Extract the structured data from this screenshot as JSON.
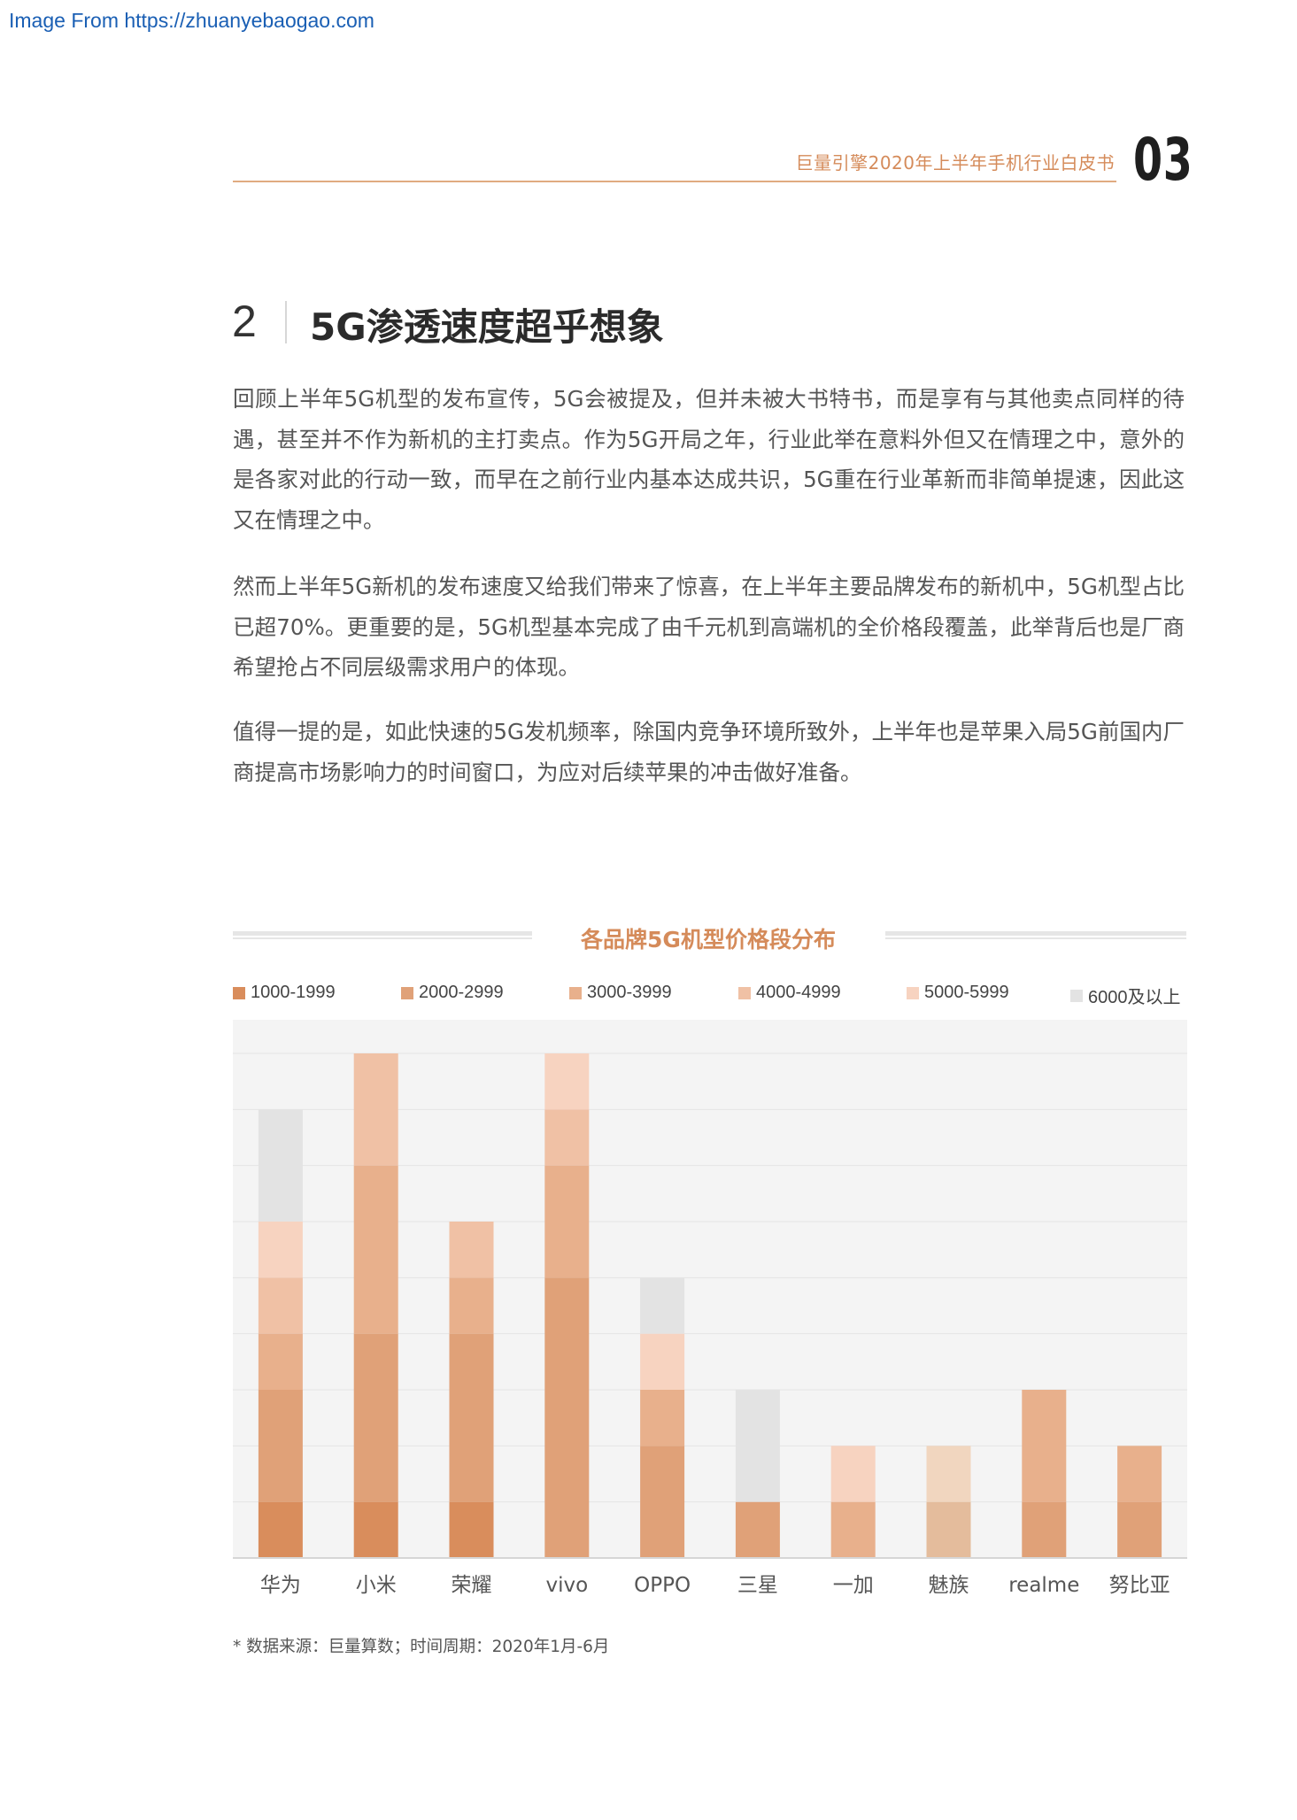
{
  "watermark": "Image From https://zhuanyebaogao.com",
  "header": {
    "report_title": "巨量引擎2020年上半年手机行业白皮书",
    "page_number": "03"
  },
  "section": {
    "number": "2",
    "title": "5G渗透速度超乎想象"
  },
  "paragraphs": [
    "回顾上半年5G机型的发布宣传，5G会被提及，但并未被大书特书，而是享有与其他卖点同样的待遇，甚至并不作为新机的主打卖点。作为5G开局之年，行业此举在意料外但又在情理之中，意外的是各家对此的行动一致，而早在之前行业内基本达成共识，5G重在行业革新而非简单提速，因此这又在情理之中。",
    "然而上半年5G新机的发布速度又给我们带来了惊喜，在上半年主要品牌发布的新机中，5G机型占比已超70%。更重要的是，5G机型基本完成了由千元机到高端机的全价格段覆盖，此举背后也是厂商希望抢占不同层级需求用户的体现。",
    "值得一提的是，如此快速的5G发机频率，除国内竞争环境所致外，上半年也是苹果入局5G前国内厂商提高市场影响力的时间窗口，为应对后续苹果的冲击做好准备。"
  ],
  "chart_data": {
    "type": "bar",
    "stacked": true,
    "title": "各品牌5G机型价格段分布",
    "categories": [
      "华为",
      "小米",
      "荣耀",
      "vivo",
      "OPPO",
      "三星",
      "一加",
      "魅族",
      "realme",
      "努比亚"
    ],
    "legend_position": "top",
    "grid": true,
    "series": [
      {
        "name": "1000-1999",
        "color": "#d98d5c",
        "values": [
          1,
          1,
          1,
          0,
          0,
          0,
          0,
          0,
          0,
          0
        ]
      },
      {
        "name": "2000-2999",
        "color": "#e0a178",
        "values": [
          2,
          3,
          3,
          5,
          2,
          1,
          0,
          0,
          1,
          1
        ]
      },
      {
        "name": "3000-3999",
        "color": "#e8b08c",
        "values": [
          1,
          3,
          1,
          2,
          1,
          0,
          1,
          1,
          2,
          1
        ]
      },
      {
        "name": "4000-4999",
        "color": "#f0c1a5",
        "values": [
          1,
          2,
          1,
          1,
          0,
          0,
          0,
          1,
          0,
          0
        ]
      },
      {
        "name": "5000-5999",
        "color": "#f7d3c0",
        "values": [
          1,
          0,
          0,
          1,
          1,
          0,
          1,
          0,
          0,
          0
        ]
      },
      {
        "name": "6000及以上",
        "color": "#e3e3e3",
        "values": [
          2,
          0,
          0,
          0,
          1,
          2,
          0,
          0,
          0,
          0
        ]
      }
    ],
    "ylim": [
      0,
      9.6
    ]
  },
  "footnote": "* 数据来源：巨量算数；时间周期：2020年1月-6月"
}
